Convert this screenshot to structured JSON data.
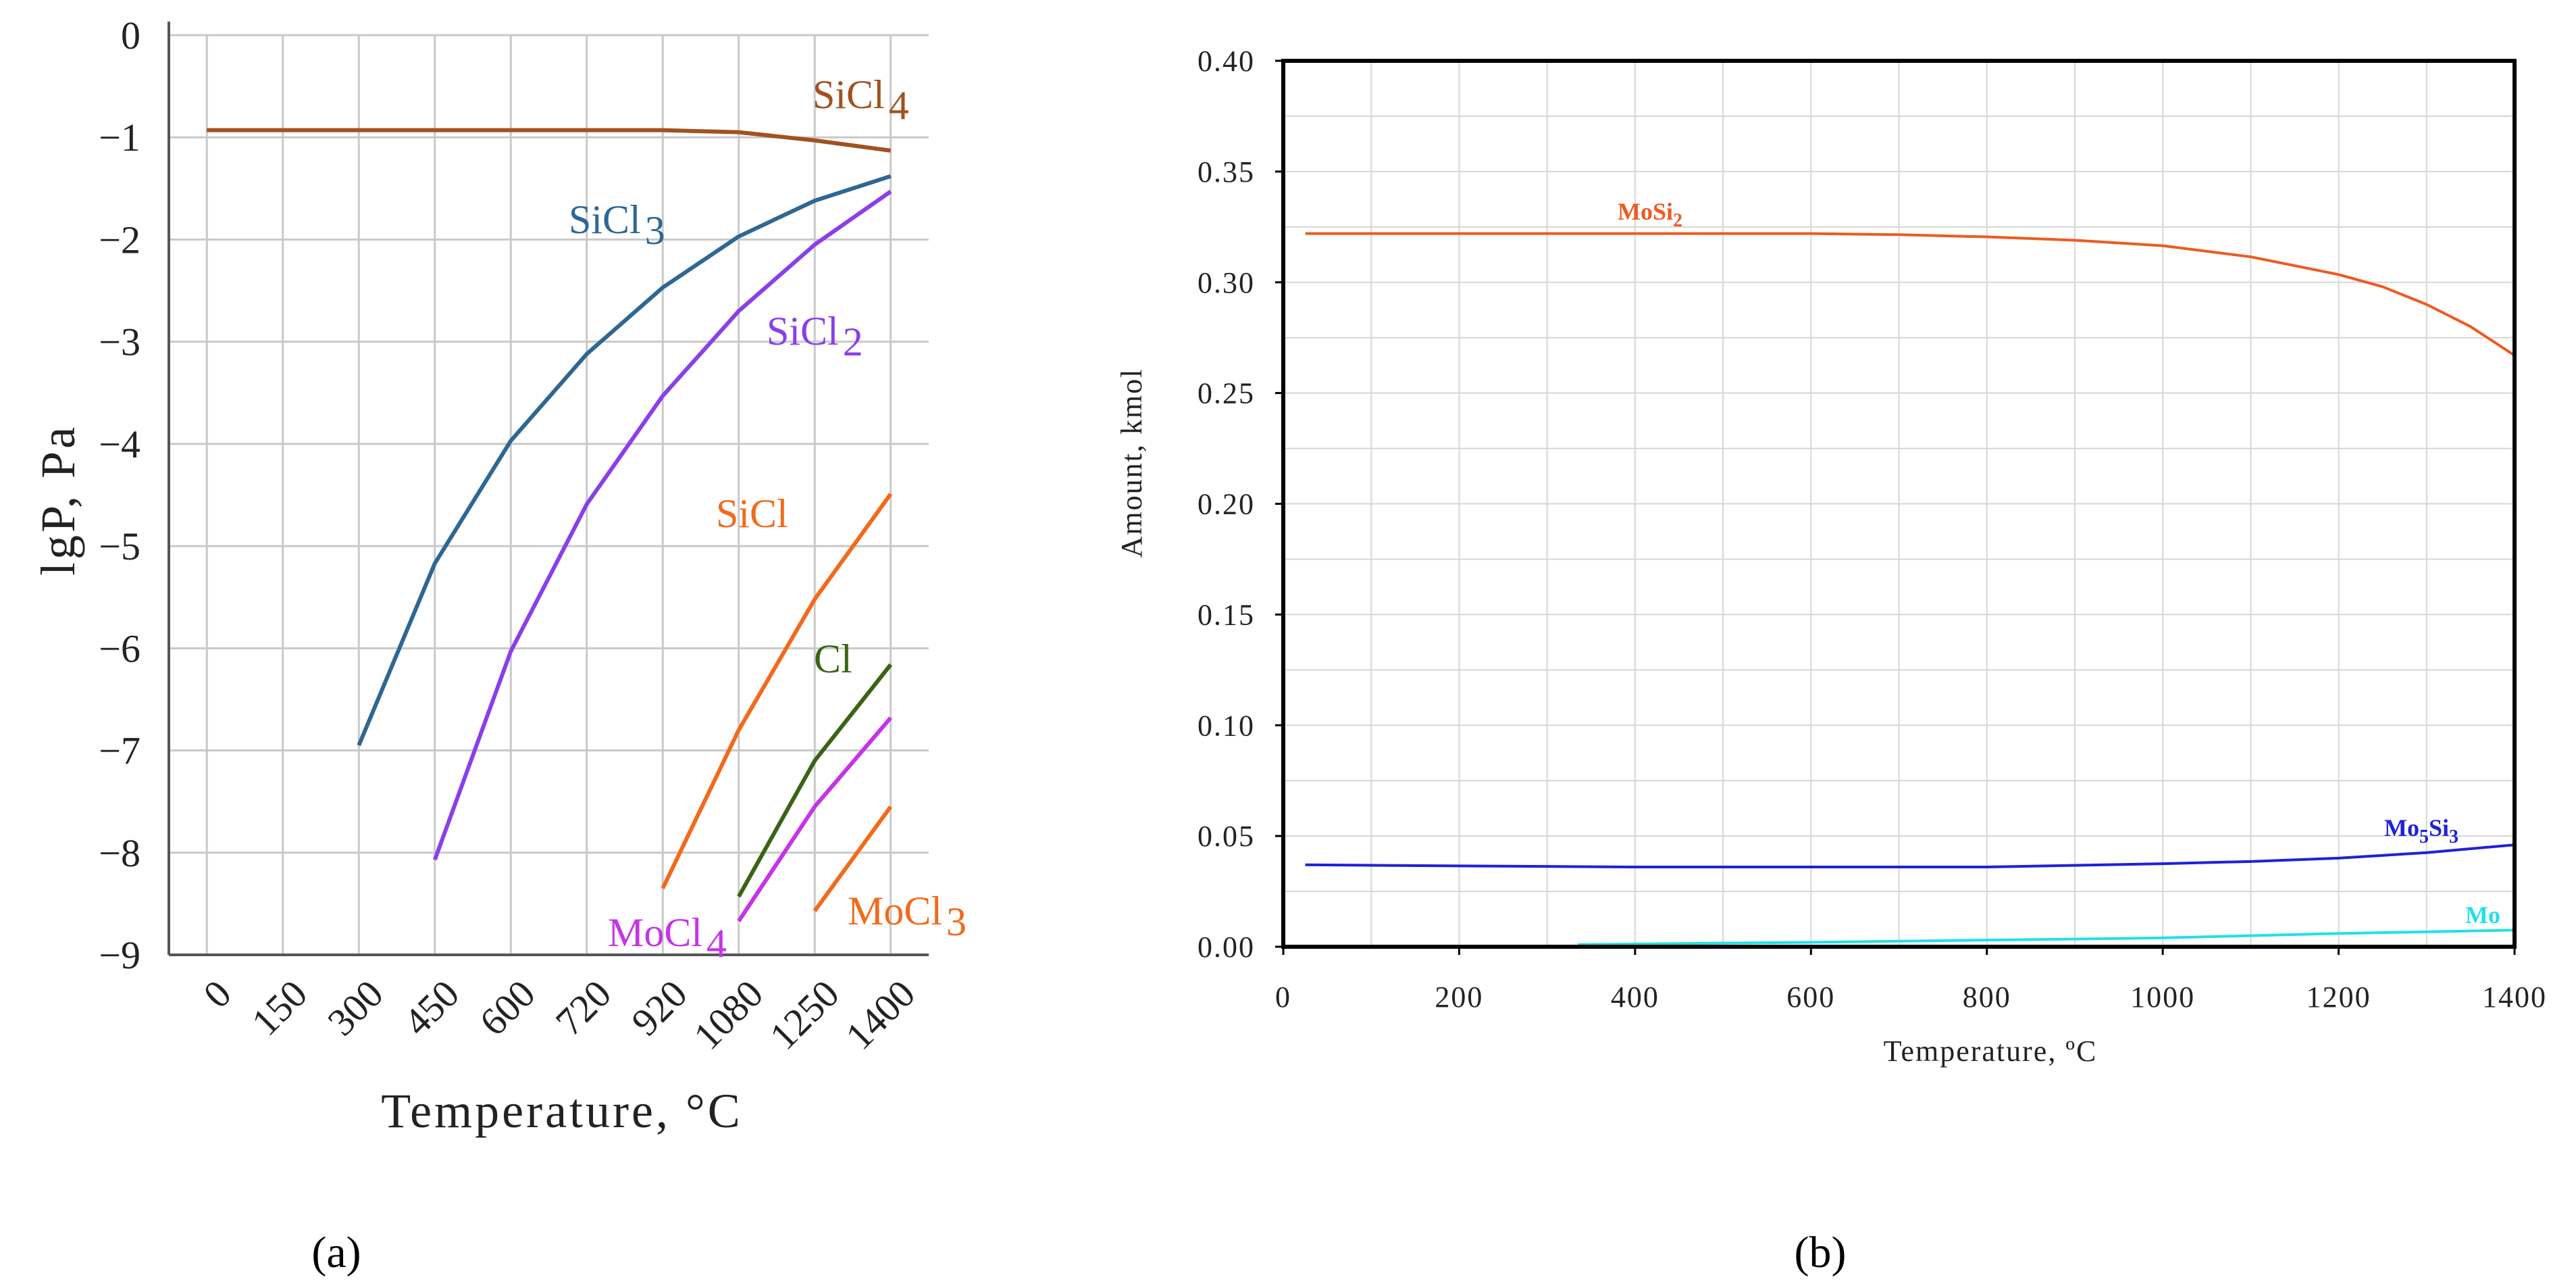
{
  "panels": {
    "a": {
      "label": "(a)"
    },
    "b": {
      "label": "(b)"
    }
  },
  "chart_data": [
    {
      "panel": "(a)",
      "type": "line",
      "xlabel": "Temperature, °C",
      "ylabel": "lgP, Pa",
      "x_ticks": [
        "0",
        "150",
        "300",
        "450",
        "600",
        "720",
        "920",
        "1080",
        "1250",
        "1400"
      ],
      "y_ticks": [
        "0",
        "−1",
        "−2",
        "−3",
        "−4",
        "−5",
        "−6",
        "−7",
        "−8",
        "−9"
      ],
      "ylim": [
        -9,
        0
      ],
      "grid": true,
      "series": [
        {
          "name": "SiCl4",
          "label_base": "SiCl",
          "label_sub": "4",
          "color": "#A0521F",
          "x": [
            0,
            150,
            300,
            450,
            600,
            720,
            920,
            1080,
            1250,
            1400
          ],
          "y": [
            -0.93,
            -0.93,
            -0.93,
            -0.93,
            -0.93,
            -0.93,
            -0.93,
            -0.95,
            -1.03,
            -1.13
          ]
        },
        {
          "name": "SiCl3",
          "label_base": "SiCl",
          "label_sub": "3",
          "color": "#2E6794",
          "x": [
            300,
            450,
            600,
            720,
            920,
            1080,
            1250,
            1400
          ],
          "y": [
            -6.95,
            -5.17,
            -3.97,
            -3.12,
            -2.47,
            -1.97,
            -1.62,
            -1.38
          ]
        },
        {
          "name": "SiCl2",
          "label_base": "SiCl",
          "label_sub": "2",
          "color": "#8A3FE8",
          "x": [
            450,
            600,
            720,
            920,
            1080,
            1250,
            1400
          ],
          "y": [
            -8.07,
            -6.03,
            -4.59,
            -3.53,
            -2.7,
            -2.05,
            -1.53
          ]
        },
        {
          "name": "SiCl",
          "label_base": "SiCl",
          "label_sub": "",
          "color": "#F26A1B",
          "x": [
            920,
            1080,
            1250,
            1400
          ],
          "y": [
            -8.35,
            -6.8,
            -5.52,
            -4.49
          ]
        },
        {
          "name": "Cl",
          "label_base": "Cl",
          "label_sub": "",
          "color": "#3A6415",
          "x": [
            1080,
            1250,
            1400
          ],
          "y": [
            -8.43,
            -7.1,
            -6.16
          ]
        },
        {
          "name": "MoCl4",
          "label_base": "MoCl",
          "label_sub": "4",
          "color": "#C633E8",
          "x": [
            1080,
            1250,
            1400
          ],
          "y": [
            -8.67,
            -7.55,
            -6.68
          ]
        },
        {
          "name": "MoCl3",
          "label_base": "MoCl",
          "label_sub": "3",
          "color": "#F26A1B",
          "x": [
            1250,
            1400
          ],
          "y": [
            -8.57,
            -7.55
          ]
        }
      ]
    },
    {
      "panel": "(b)",
      "type": "line",
      "xlabel": "Temperature, ºC",
      "ylabel": "Amount, kmol",
      "x_ticks": [
        "0",
        "200",
        "400",
        "600",
        "800",
        "1000",
        "1200",
        "1400"
      ],
      "y_ticks": [
        "0.00",
        "0.05",
        "0.10",
        "0.15",
        "0.20",
        "0.25",
        "0.30",
        "0.35",
        "0.40"
      ],
      "xlim": [
        0,
        1400
      ],
      "ylim": [
        0,
        0.4
      ],
      "grid": true,
      "series": [
        {
          "name": "MoSi2",
          "color": "#EE5A22",
          "x": [
            25,
            200,
            400,
            600,
            700,
            800,
            900,
            1000,
            1100,
            1200,
            1250,
            1300,
            1350,
            1400
          ],
          "y": [
            0.322,
            0.322,
            0.322,
            0.322,
            0.3215,
            0.3205,
            0.319,
            0.3165,
            0.3115,
            0.3035,
            0.298,
            0.29,
            0.28,
            0.267
          ]
        },
        {
          "name": "Mo5Si3",
          "color": "#1E22D6",
          "x": [
            25,
            200,
            400,
            600,
            800,
            1000,
            1100,
            1200,
            1300,
            1400
          ],
          "y": [
            0.037,
            0.0365,
            0.036,
            0.036,
            0.036,
            0.0375,
            0.0385,
            0.04,
            0.0425,
            0.046
          ]
        },
        {
          "name": "Mo",
          "color": "#22E0E8",
          "x": [
            335,
            600,
            800,
            1000,
            1200,
            1400
          ],
          "y": [
            0.001,
            0.002,
            0.003,
            0.004,
            0.006,
            0.0075
          ]
        }
      ]
    }
  ]
}
